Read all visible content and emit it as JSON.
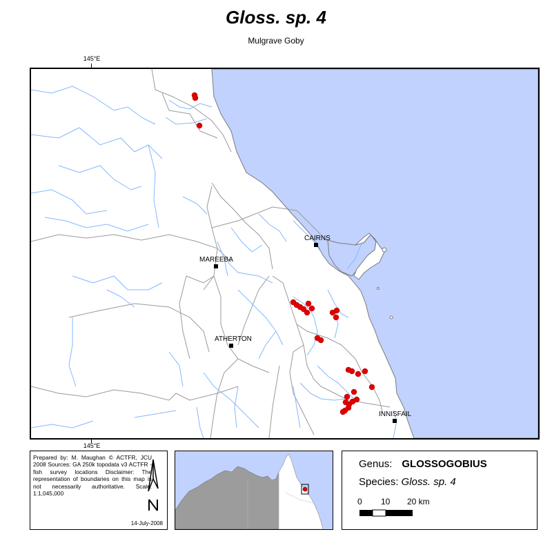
{
  "title": "Gloss. sp. 4",
  "subtitle": "Mulgrave Goby",
  "graticule": {
    "top_label": "145°E",
    "bottom_label": "145°E"
  },
  "towns": [
    {
      "name": "CAIRNS"
    },
    {
      "name": "MAREEBA"
    },
    {
      "name": "ATHERTON"
    },
    {
      "name": "INNISFAIL"
    }
  ],
  "colors": {
    "sea": "#c1d2ff",
    "records": "#e00000",
    "rivers": "#82b7ff",
    "boundaries": "#999999",
    "inset_land": "#9c9c9c"
  },
  "credits": {
    "lines": "Prepared by: M. Maughan © ACTFR, JCU 2008 Sources: GA 250k topodata v3 ACTFR - fish survey locations Disclaimer: The representation of boundaries on this map is not necessarily authoritative. Scale: 1:1,045,000",
    "date": "14-July-2008",
    "north_symbol": "north-arrow-icon"
  },
  "legend": {
    "genus_label": "Genus:",
    "genus_value": "GLOSSOGOBIUS",
    "species_label": "Species:",
    "species_value": "Gloss. sp. 4",
    "scale_labels": [
      "0",
      "10",
      "20 km"
    ]
  }
}
